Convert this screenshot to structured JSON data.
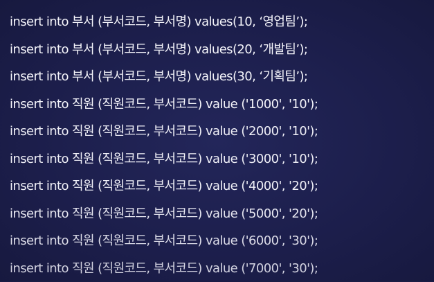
{
  "lines": [
    "insert into 부서 (부서코드, 부서명) values(10, ‘영업팀’);",
    "insert into 부서 (부서코드, 부서명) values(20, ‘개발팀’);",
    "insert into 부서 (부서코드, 부서명) values(30, ‘기획팀’);",
    "insert into 직원 (직원코드, 부서코드)  value ('1000', '10');",
    "insert into 직원 (직원코드, 부서코드)  value ('2000', '10');",
    "insert into 직원 (직원코드, 부서코드)  value ('3000', '10');",
    "insert into 직원 (직원코드, 부서코드)  value ('4000', '20');",
    "insert into 직원 (직원코드, 부서코드)  value ('5000', '20');",
    "insert into 직원 (직원코드, 부서코드)  value ('6000', '30');",
    "insert into 직원 (직원코드, 부서코드)  value ('7000', '30');"
  ]
}
